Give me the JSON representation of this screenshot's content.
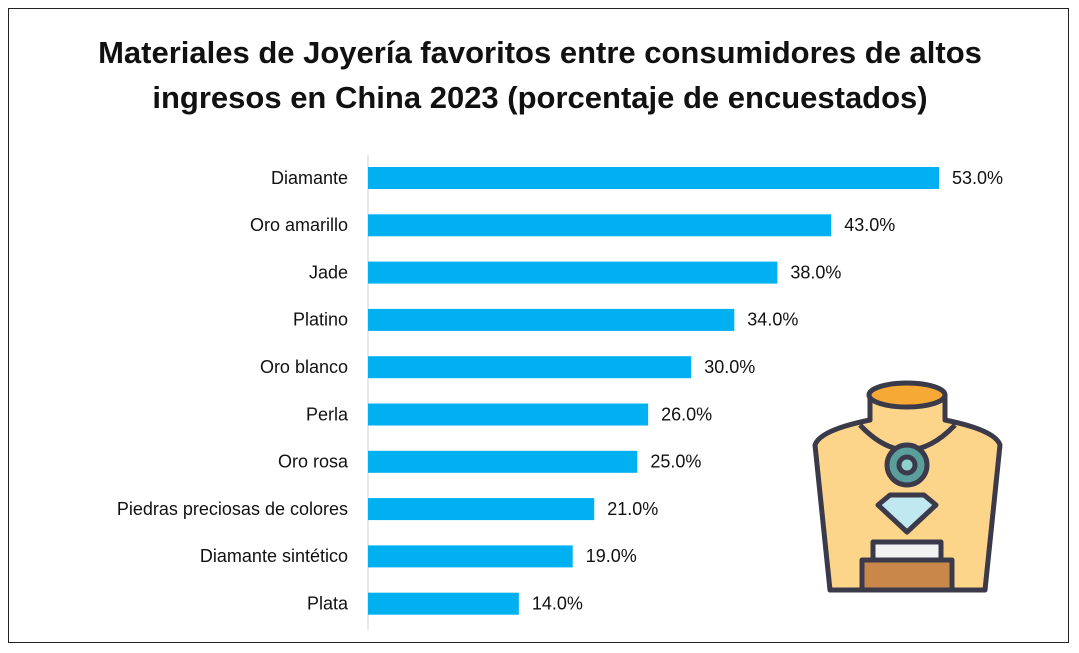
{
  "chart_data": {
    "type": "bar",
    "orientation": "horizontal",
    "title": "Materiales de Joyería favoritos entre consumidores de altos ingresos en China 2023 (porcentaje de encuestados)",
    "categories": [
      "Diamante",
      "Oro amarillo",
      "Jade",
      "Platino",
      "Oro blanco",
      "Perla",
      "Oro rosa",
      "Piedras preciosas de colores",
      "Diamante sintético",
      "Plata"
    ],
    "values": [
      53,
      43,
      38,
      34,
      30,
      26,
      25,
      21,
      19,
      14
    ],
    "value_labels": [
      "53.0%",
      "43.0%",
      "38.0%",
      "34.0%",
      "30.0%",
      "26.0%",
      "25.0%",
      "21.0%",
      "19.0%",
      "14.0%"
    ],
    "color": "#00b0f0"
  }
}
